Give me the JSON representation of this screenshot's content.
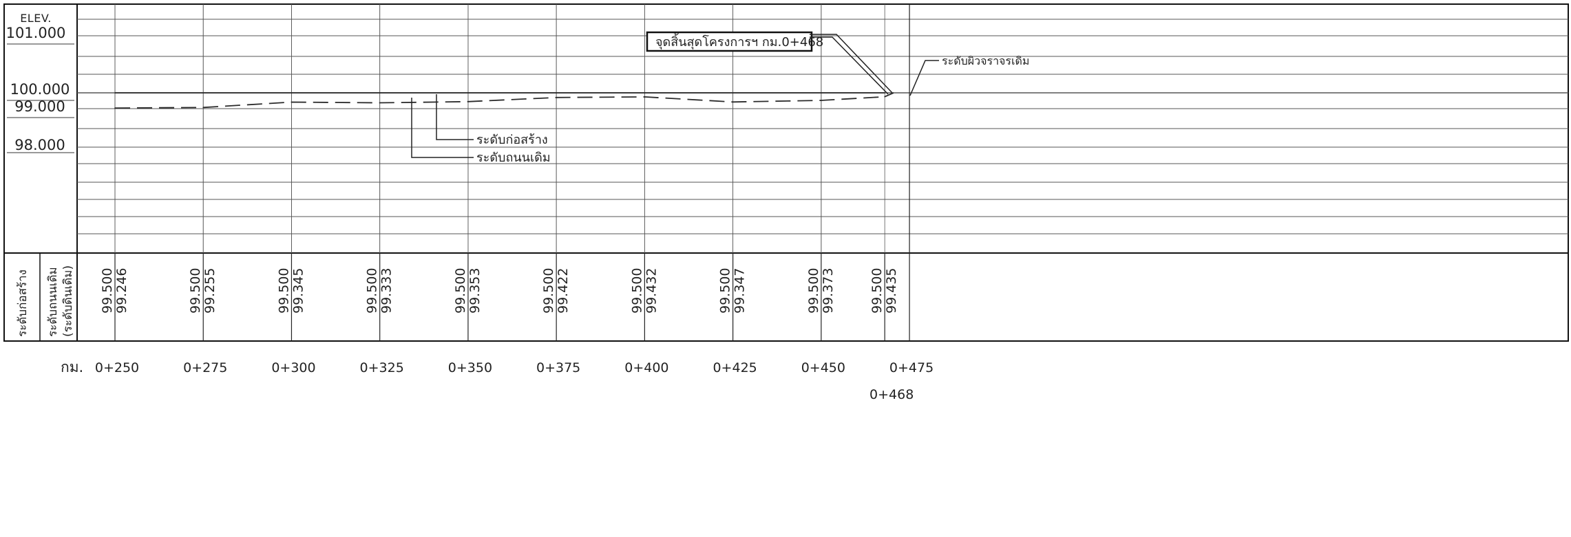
{
  "chart_data": {
    "type": "line",
    "title": "",
    "elev_header": [
      "ELEV.",
      "101.000"
    ],
    "ylabel": "ELEV.",
    "ylim": [
      97.0,
      101.0
    ],
    "y_ticks": [
      "101.000",
      "100.000",
      "99.000",
      "98.000"
    ],
    "x_prefix": "กม.",
    "x_unit": "m",
    "x_ticks": [
      "0+250",
      "0+275",
      "0+300",
      "0+325",
      "0+350",
      "0+375",
      "0+400",
      "0+425",
      "0+450",
      "0+475"
    ],
    "x_extra_tick": "0+468",
    "x": [
      "0+250",
      "0+275",
      "0+300",
      "0+325",
      "0+350",
      "0+375",
      "0+400",
      "0+425",
      "0+450",
      "0+468"
    ],
    "series": [
      {
        "name": "ระดับก่อสร้าง",
        "values": [
          99.5,
          99.5,
          99.5,
          99.5,
          99.5,
          99.5,
          99.5,
          99.5,
          99.5,
          99.5
        ],
        "style": "solid"
      },
      {
        "name": "ระดับถนนเดิม",
        "values": [
          99.246,
          99.255,
          99.345,
          99.333,
          99.353,
          99.422,
          99.432,
          99.347,
          99.373,
          99.435
        ],
        "style": "dashed"
      }
    ],
    "table_row_labels": [
      "ระดับก่อสร้าง",
      "ระดับถนนเดิม",
      "(ระดับดินเดิม)"
    ],
    "table_values": [
      [
        "99.500",
        "99.246"
      ],
      [
        "99.500",
        "99.255"
      ],
      [
        "99.500",
        "99.345"
      ],
      [
        "99.500",
        "99.333"
      ],
      [
        "99.500",
        "99.353"
      ],
      [
        "99.500",
        "99.422"
      ],
      [
        "99.500",
        "99.432"
      ],
      [
        "99.500",
        "99.347"
      ],
      [
        "99.500",
        "99.373"
      ],
      [
        "99.500",
        "99.435"
      ]
    ],
    "annotations": {
      "construction_level": "ระดับก่อสร้าง",
      "existing_road_level": "ระดับถนนเดิม",
      "project_end": "จุดสิ้นสุดโครงการฯ กม.0+468",
      "existing_surface": "ระดับผิวจราจรเดิม"
    },
    "grid": true,
    "legend": "none",
    "colors": {
      "line": "#2a2a2a",
      "grid": "#555555",
      "frame": "#111111"
    }
  }
}
